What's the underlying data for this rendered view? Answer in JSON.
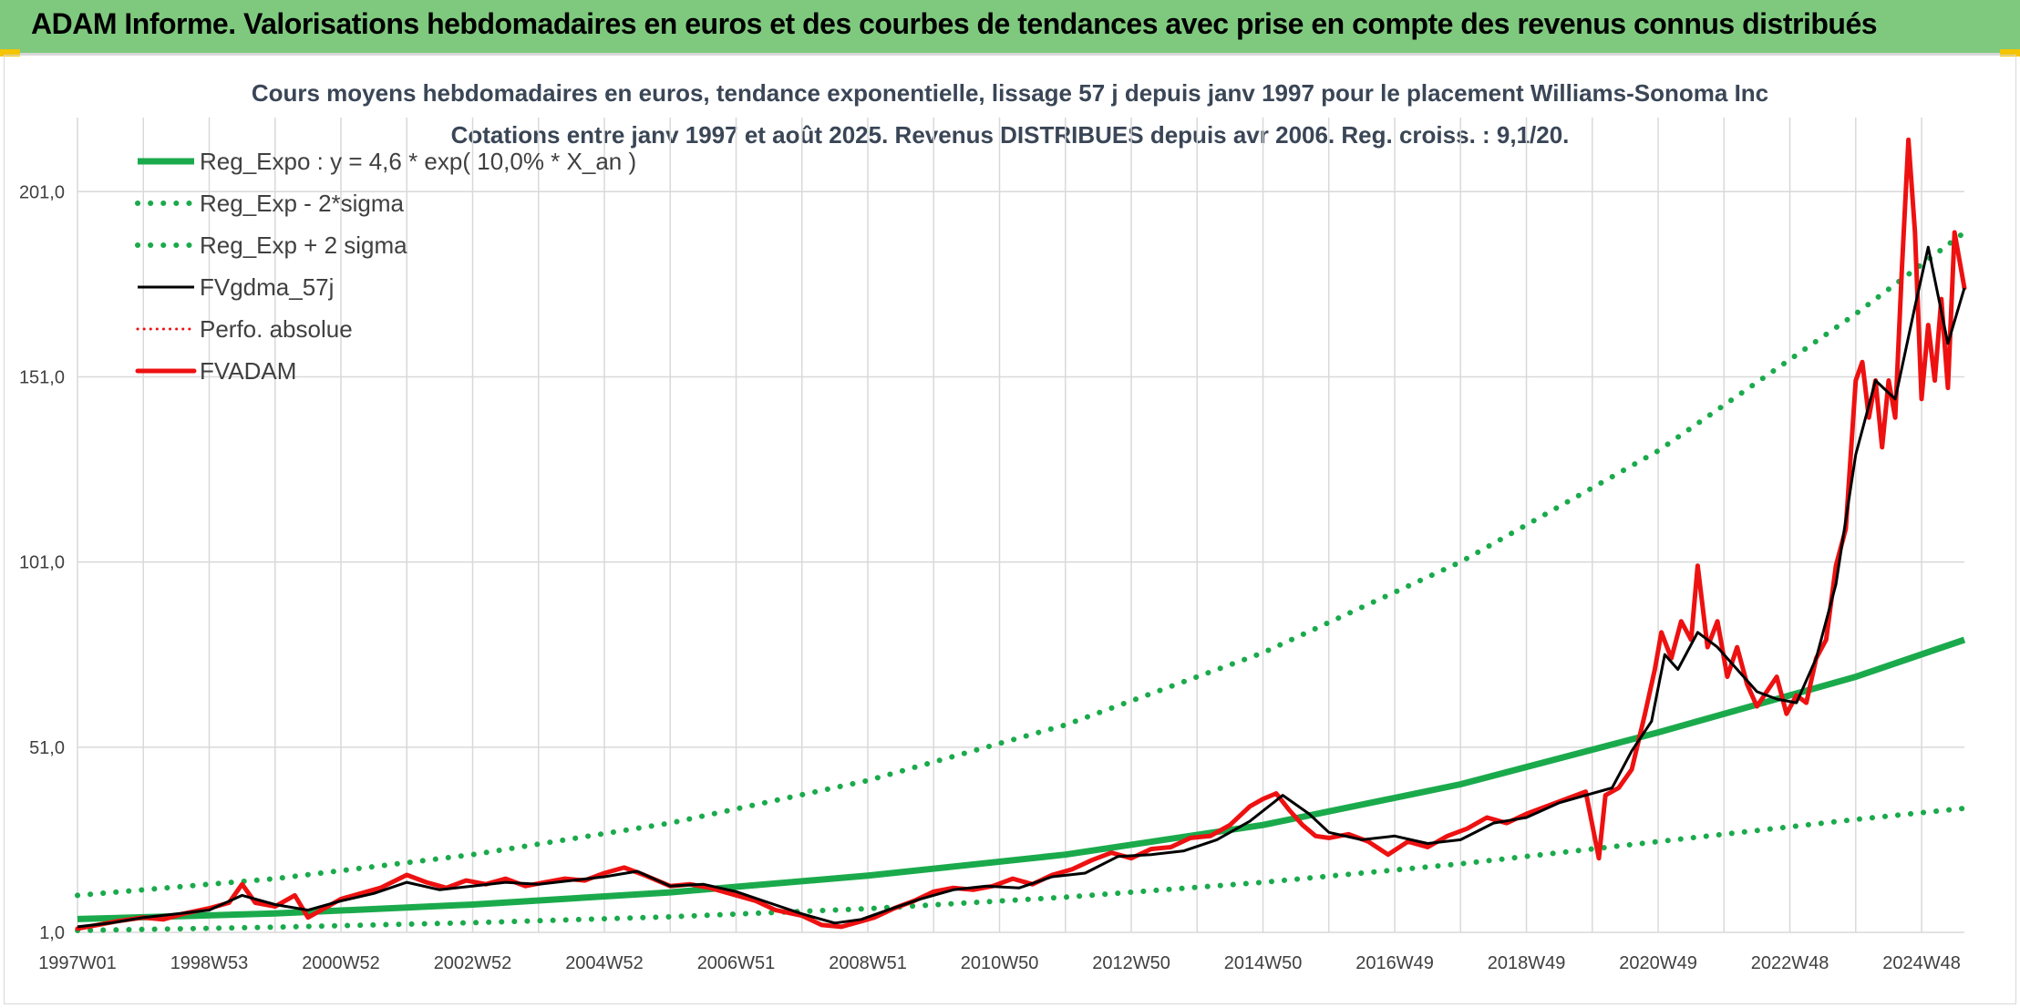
{
  "header": {
    "title": "ADAM Informe. Valorisations hebdomadaires en euros et des courbes de tendances avec prise en compte des revenus connus distribués"
  },
  "colors": {
    "header_bg": "#7fc97f",
    "reg_green": "#1aaa4c",
    "fv_black": "#000000",
    "fvadam_red": "#ee1111",
    "grid": "#d9d9d9"
  },
  "chart_data": {
    "type": "line",
    "title": "Cours moyens hebdomadaires en euros, tendance exponentielle, lissage 57 j depuis janv 1997 pour le placement Williams-Sonoma Inc",
    "subtitle": "Cotations entre janv 1997 et août 2025. Revenus DISTRIBUES depuis avr 2006. Reg. croiss. : 9,1/20.",
    "xlabel": "",
    "ylabel": "",
    "x_ticks": [
      "1997W01",
      "1998W53",
      "2000W52",
      "2002W52",
      "2004W52",
      "2006W51",
      "2008W51",
      "2010W50",
      "2012W50",
      "2014W50",
      "2016W49",
      "2018W49",
      "2020W49",
      "2022W48",
      "2024W48"
    ],
    "y_ticks": [
      "1,0",
      "51,0",
      "101,0",
      "151,0",
      "201,0"
    ],
    "ylim": [
      1,
      221
    ],
    "xlim": [
      1997.0,
      2025.65
    ],
    "grid": true,
    "legend_position": "top-left",
    "legend": [
      {
        "name": "Reg_Expo : y = 4,6 * exp( 10,0% *  X_an )",
        "style": "solid-green"
      },
      {
        "name": "Reg_Exp - 2*sigma",
        "style": "dotted-green"
      },
      {
        "name": "Reg_Exp + 2 sigma",
        "style": "dotted-green"
      },
      {
        "name": "FVgdma_57j",
        "style": "solid-black"
      },
      {
        "name": "Perfo. absolue",
        "style": "dotted-red"
      },
      {
        "name": "FVADAM",
        "style": "solid-red"
      }
    ],
    "series": [
      {
        "name": "Reg_Expo : y = 4,6 * exp( 10,0% *  X_an )",
        "x": [
          1997.0,
          2000.0,
          2003.0,
          2006.0,
          2009.0,
          2012.0,
          2015.0,
          2018.0,
          2021.0,
          2024.0,
          2025.65
        ],
        "y": [
          4.6,
          6.1,
          8.5,
          11.8,
          16.3,
          22.0,
          30.0,
          41.0,
          55.0,
          70.0,
          80.0
        ]
      },
      {
        "name": "Reg_Exp - 2*sigma",
        "x": [
          1997.0,
          2000.0,
          2003.0,
          2006.0,
          2009.0,
          2012.0,
          2015.0,
          2018.0,
          2021.0,
          2024.0,
          2025.65
        ],
        "y": [
          1.5,
          2.4,
          3.6,
          5.2,
          7.4,
          10.5,
          14.5,
          19.5,
          25.5,
          31.5,
          34.5
        ]
      },
      {
        "name": "Reg_Exp + 2 sigma",
        "x": [
          1997.0,
          2000.0,
          2003.0,
          2006.0,
          2009.0,
          2012.0,
          2015.0,
          2018.0,
          2021.0,
          2024.0,
          2025.65
        ],
        "y": [
          11.0,
          15.5,
          22.0,
          30.5,
          42.0,
          57.0,
          76.5,
          101.0,
          131.0,
          168.0,
          190.0
        ]
      },
      {
        "name": "FVgdma_57j",
        "x": [
          1997.0,
          1997.5,
          1998.0,
          1998.5,
          1999.0,
          1999.5,
          2000.0,
          2000.5,
          2001.0,
          2001.5,
          2002.0,
          2002.5,
          2003.0,
          2003.5,
          2004.0,
          2004.5,
          2005.0,
          2005.5,
          2006.0,
          2006.5,
          2007.0,
          2007.5,
          2008.0,
          2008.5,
          2008.9,
          2009.3,
          2009.8,
          2010.3,
          2010.8,
          2011.3,
          2011.8,
          2012.3,
          2012.8,
          2013.3,
          2013.8,
          2014.3,
          2014.8,
          2015.3,
          2015.7,
          2016.0,
          2016.5,
          2017.0,
          2017.5,
          2018.0,
          2018.5,
          2019.0,
          2019.5,
          2019.9,
          2020.3,
          2020.6,
          2020.9,
          2021.1,
          2021.3,
          2021.6,
          2021.9,
          2022.2,
          2022.5,
          2022.8,
          2023.1,
          2023.4,
          2023.7,
          2024.0,
          2024.3,
          2024.6,
          2024.9,
          2025.1,
          2025.4,
          2025.65
        ],
        "y": [
          2.5,
          3.5,
          5.0,
          6.0,
          7.0,
          11.0,
          8.5,
          7.0,
          9.5,
          11.5,
          14.5,
          12.5,
          13.5,
          14.5,
          14.0,
          15.0,
          16.0,
          17.5,
          13.5,
          14.0,
          12.0,
          9.0,
          6.0,
          3.5,
          4.5,
          7.0,
          10.0,
          12.5,
          13.5,
          13.0,
          16.0,
          17.0,
          21.5,
          22.0,
          23.0,
          26.0,
          31.0,
          38.0,
          33.0,
          28.0,
          26.0,
          27.0,
          25.0,
          26.0,
          30.5,
          32.0,
          36.0,
          38.0,
          40.0,
          50.0,
          58.0,
          76.0,
          72.0,
          82.0,
          78.0,
          72.0,
          66.0,
          64.0,
          63.0,
          75.0,
          95.0,
          130.0,
          150.0,
          145.0,
          170.0,
          186.0,
          160.0,
          175.0
        ]
      },
      {
        "name": "FVADAM",
        "x": [
          1997.0,
          1997.3,
          1997.6,
          1998.0,
          1998.3,
          1998.6,
          1999.0,
          1999.3,
          1999.5,
          1999.7,
          2000.0,
          2000.3,
          2000.5,
          2000.8,
          2001.0,
          2001.3,
          2001.6,
          2002.0,
          2002.3,
          2002.6,
          2002.9,
          2003.2,
          2003.5,
          2003.8,
          2004.1,
          2004.4,
          2004.7,
          2005.0,
          2005.3,
          2005.6,
          2006.0,
          2006.3,
          2006.6,
          2007.0,
          2007.3,
          2007.6,
          2008.0,
          2008.3,
          2008.6,
          2008.9,
          2009.1,
          2009.4,
          2009.7,
          2010.0,
          2010.3,
          2010.6,
          2010.9,
          2011.2,
          2011.5,
          2011.8,
          2012.1,
          2012.4,
          2012.7,
          2013.0,
          2013.3,
          2013.6,
          2013.9,
          2014.2,
          2014.5,
          2014.8,
          2015.0,
          2015.2,
          2015.4,
          2015.6,
          2015.8,
          2016.0,
          2016.3,
          2016.6,
          2016.9,
          2017.2,
          2017.5,
          2017.8,
          2018.1,
          2018.4,
          2018.7,
          2019.0,
          2019.3,
          2019.6,
          2019.9,
          2020.1,
          2020.2,
          2020.4,
          2020.6,
          2020.8,
          2020.95,
          2021.05,
          2021.2,
          2021.35,
          2021.5,
          2021.6,
          2021.75,
          2021.9,
          2022.05,
          2022.2,
          2022.35,
          2022.5,
          2022.65,
          2022.8,
          2022.95,
          2023.1,
          2023.25,
          2023.4,
          2023.55,
          2023.7,
          2023.85,
          2024.0,
          2024.1,
          2024.2,
          2024.3,
          2024.4,
          2024.5,
          2024.6,
          2024.7,
          2024.8,
          2024.9,
          2025.0,
          2025.1,
          2025.2,
          2025.3,
          2025.4,
          2025.5,
          2025.65
        ],
        "y": [
          2.0,
          3.0,
          4.0,
          5.0,
          4.5,
          6.0,
          7.5,
          9.0,
          14.0,
          9.0,
          8.0,
          11.0,
          5.0,
          8.0,
          10.0,
          11.5,
          13.0,
          16.5,
          14.5,
          13.0,
          15.0,
          14.0,
          15.5,
          13.5,
          14.5,
          15.5,
          15.0,
          17.0,
          18.5,
          16.5,
          13.5,
          14.0,
          13.0,
          11.0,
          9.5,
          7.0,
          5.5,
          3.0,
          2.5,
          4.0,
          5.0,
          7.5,
          9.5,
          12.0,
          13.0,
          12.5,
          13.5,
          15.5,
          14.0,
          16.5,
          18.0,
          20.5,
          22.5,
          21.0,
          23.5,
          24.0,
          26.5,
          27.0,
          30.0,
          35.0,
          37.0,
          38.5,
          34.0,
          30.0,
          27.0,
          26.5,
          27.5,
          25.5,
          22.0,
          25.5,
          24.0,
          27.0,
          29.0,
          32.0,
          30.5,
          33.0,
          35.0,
          37.0,
          39.0,
          21.0,
          38.0,
          40.0,
          45.0,
          60.0,
          72.0,
          82.0,
          75.0,
          85.0,
          80.0,
          100.0,
          78.0,
          85.0,
          70.0,
          78.0,
          68.0,
          62.0,
          66.0,
          70.0,
          60.0,
          65.0,
          63.0,
          75.0,
          80.0,
          100.0,
          110.0,
          150.0,
          155.0,
          140.0,
          150.0,
          132.0,
          150.0,
          140.0,
          180.0,
          215.0,
          190.0,
          145.0,
          165.0,
          150.0,
          172.0,
          148.0,
          190.0,
          175.0
        ]
      }
    ]
  }
}
